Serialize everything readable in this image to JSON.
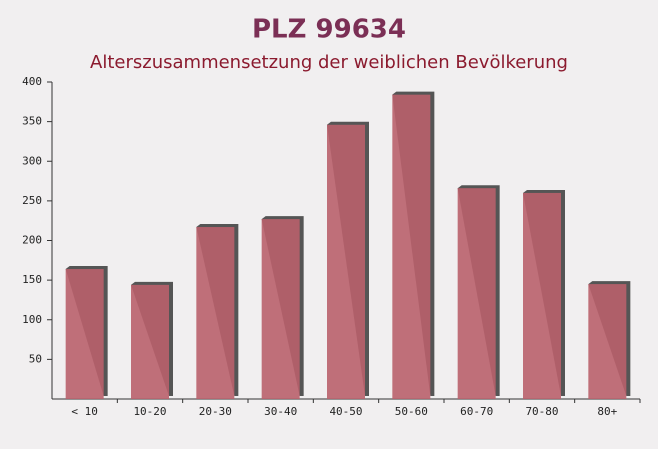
{
  "chart_data": {
    "type": "bar",
    "title": "PLZ 99634",
    "subtitle": "Alterszusammensetzung der weiblichen Bevölkerung",
    "categories": [
      "< 10",
      "10-20",
      "20-30",
      "30-40",
      "40-50",
      "50-60",
      "60-70",
      "70-80",
      "80+"
    ],
    "values": [
      164,
      144,
      217,
      227,
      346,
      384,
      266,
      260,
      145
    ],
    "color": "#b9606b",
    "ylim": [
      0,
      400
    ],
    "yticks": [
      50,
      100,
      150,
      200,
      250,
      300,
      350,
      400
    ]
  }
}
